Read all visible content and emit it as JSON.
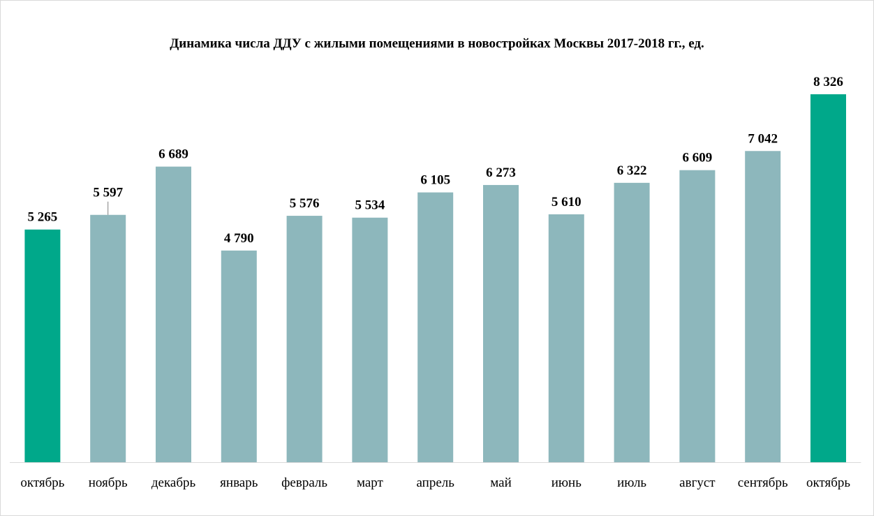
{
  "chart_data": {
    "type": "bar",
    "title": "Динамика числа ДДУ с жилыми помещениями в новостройках Москвы 2017-2018 гг., ед.",
    "categories": [
      "октябрь",
      "ноябрь",
      "декабрь",
      "январь",
      "февраль",
      "март",
      "апрель",
      "май",
      "июнь",
      "июль",
      "август",
      "сентябрь",
      "октябрь"
    ],
    "values": [
      5265,
      5597,
      6689,
      4790,
      5576,
      5534,
      6105,
      6273,
      5610,
      6322,
      6609,
      7042,
      8326
    ],
    "value_labels": [
      "5 265",
      "5 597",
      "6 689",
      "4 790",
      "5 576",
      "5 534",
      "6 105",
      "6 273",
      "5 610",
      "6 322",
      "6 609",
      "7 042",
      "8 326"
    ],
    "highlight_indices": [
      0,
      12
    ],
    "colors": {
      "bar": "#8db7bc",
      "highlight": "#00a88a",
      "axis": "#d9d9d9"
    },
    "xlabel": "",
    "ylabel": "",
    "ylim": [
      0,
      8326
    ],
    "grid": false,
    "legend": "none"
  }
}
